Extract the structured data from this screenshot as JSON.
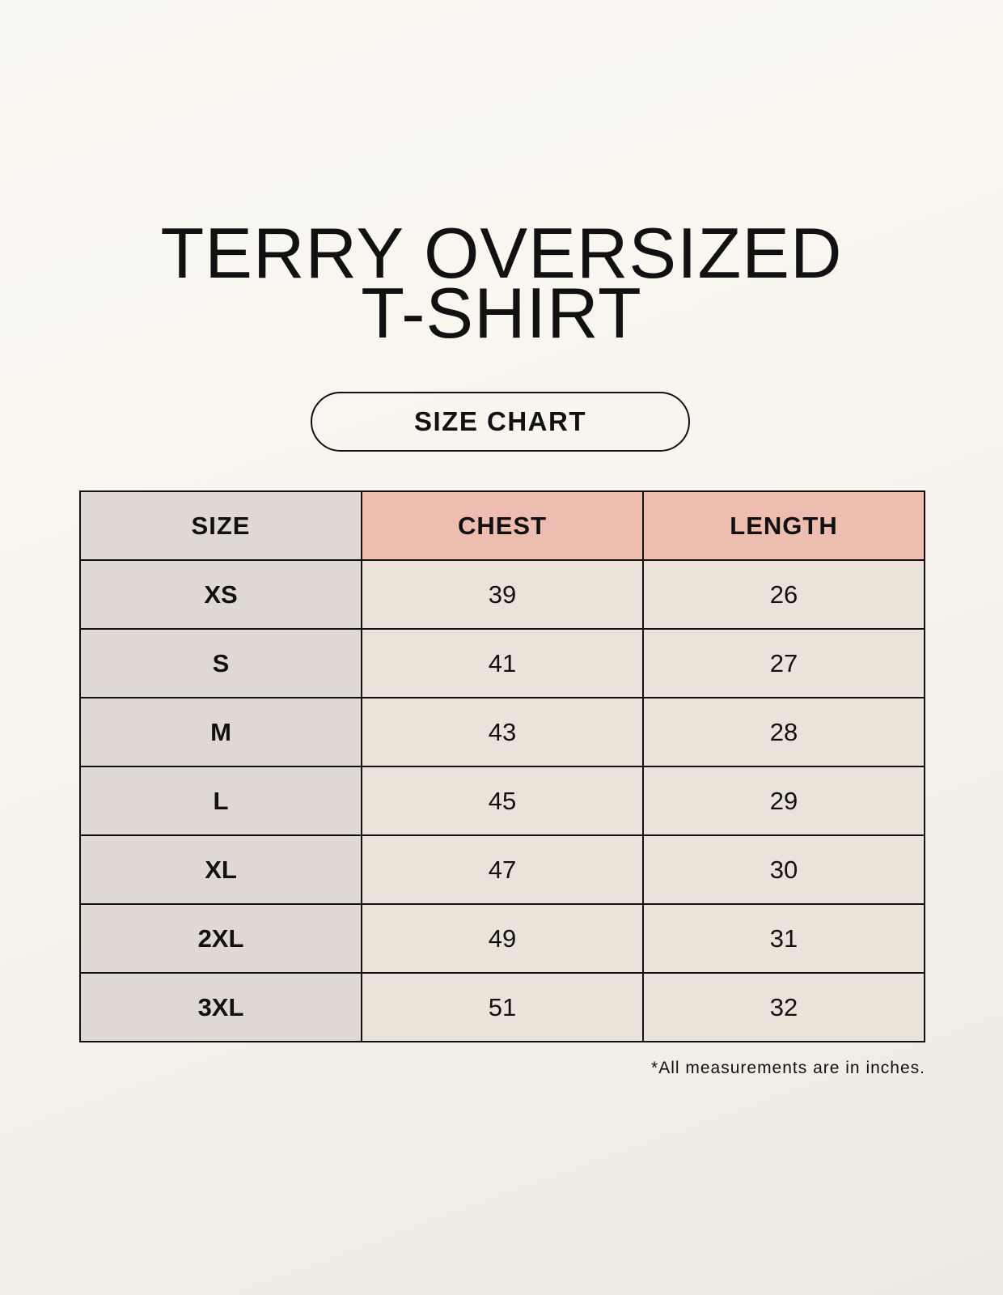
{
  "title": {
    "line1": "TERRY OVERSIZED",
    "line2": "T-SHIRT"
  },
  "badge": "SIZE CHART",
  "colors": {
    "size_column": "#e0d8d2",
    "header_highlight": "#edbdaf",
    "value_cells": "#ebe3d9"
  },
  "table": {
    "headers": [
      "SIZE",
      "CHEST",
      "LENGTH"
    ],
    "rows": [
      [
        "XS",
        "39",
        "26"
      ],
      [
        "S",
        "41",
        "27"
      ],
      [
        "M",
        "43",
        "28"
      ],
      [
        "L",
        "45",
        "29"
      ],
      [
        "XL",
        "47",
        "30"
      ],
      [
        "2XL",
        "49",
        "31"
      ],
      [
        "3XL",
        "51",
        "32"
      ]
    ]
  },
  "footnote": "*All measurements are in inches."
}
